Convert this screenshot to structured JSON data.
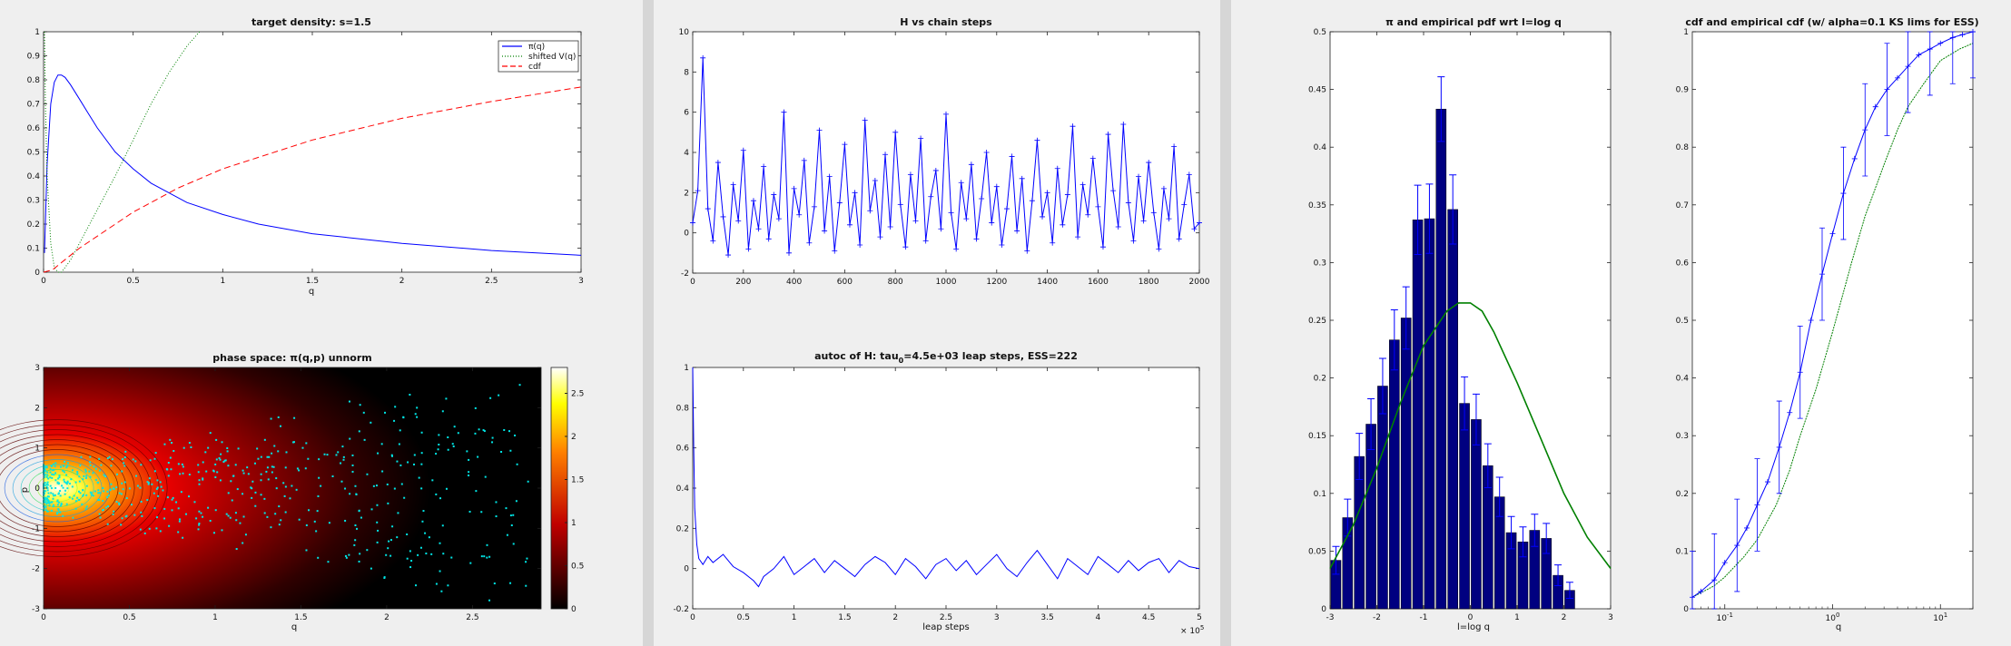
{
  "chart_data": [
    {
      "type": "line",
      "title": "target density: s=1.5",
      "xlabel": "q",
      "ylabel": "",
      "xlim": [
        0,
        3
      ],
      "ylim": [
        0,
        1
      ],
      "xticks": [
        "0",
        "0.5",
        "1",
        "1.5",
        "2",
        "2.5",
        "3"
      ],
      "yticks": [
        "0",
        "0.1",
        "0.2",
        "0.3",
        "0.4",
        "0.5",
        "0.6",
        "0.7",
        "0.8",
        "0.9",
        "1"
      ],
      "legend": [
        "π(q)",
        "shifted V(q)",
        "cdf"
      ],
      "legend_position": "top-right",
      "series": [
        {
          "name": "π(q)",
          "color": "#0000ff",
          "x": [
            0.005,
            0.02,
            0.04,
            0.06,
            0.08,
            0.1,
            0.12,
            0.15,
            0.2,
            0.25,
            0.3,
            0.4,
            0.5,
            0.6,
            0.8,
            1.0,
            1.2,
            1.5,
            2.0,
            2.5,
            3.0
          ],
          "y": [
            0.08,
            0.45,
            0.7,
            0.79,
            0.82,
            0.82,
            0.81,
            0.78,
            0.72,
            0.66,
            0.6,
            0.5,
            0.43,
            0.37,
            0.29,
            0.24,
            0.2,
            0.16,
            0.12,
            0.09,
            0.07
          ]
        },
        {
          "name": "shifted V(q)",
          "color": "#008000",
          "x": [
            0.005,
            0.01,
            0.02,
            0.04,
            0.06,
            0.08,
            0.1,
            0.12,
            0.15,
            0.2,
            0.3,
            0.4,
            0.5,
            0.6,
            0.7,
            0.8,
            0.87
          ],
          "y": [
            1.0,
            0.7,
            0.4,
            0.12,
            0.02,
            0.0,
            0.0,
            0.02,
            0.05,
            0.12,
            0.26,
            0.4,
            0.55,
            0.7,
            0.83,
            0.94,
            1.0
          ]
        },
        {
          "name": "cdf",
          "color": "#ff0000",
          "x": [
            0,
            0.05,
            0.1,
            0.2,
            0.3,
            0.5,
            0.75,
            1.0,
            1.5,
            2.0,
            2.5,
            3.0
          ],
          "y": [
            0.0,
            0.01,
            0.04,
            0.1,
            0.15,
            0.25,
            0.35,
            0.43,
            0.55,
            0.64,
            0.71,
            0.77
          ]
        }
      ]
    },
    {
      "type": "line",
      "title": "H vs chain steps",
      "xlabel": "",
      "ylabel": "",
      "xlim": [
        0,
        2000
      ],
      "ylim": [
        -2,
        10
      ],
      "xticks": [
        "0",
        "200",
        "400",
        "600",
        "800",
        "1000",
        "1200",
        "1400",
        "1600",
        "1800",
        "2000"
      ],
      "yticks": [
        "-2",
        "0",
        "2",
        "4",
        "6",
        "8",
        "10"
      ],
      "series": [
        {
          "name": "",
          "color": "#0000ff",
          "marker": "+",
          "x": [
            0,
            20,
            40,
            60,
            80,
            100,
            120,
            140,
            160,
            180,
            200,
            220,
            240,
            260,
            280,
            300,
            320,
            340,
            360,
            380,
            400,
            420,
            440,
            460,
            480,
            500,
            520,
            540,
            560,
            580,
            600,
            620,
            640,
            660,
            680,
            700,
            720,
            740,
            760,
            780,
            800,
            820,
            840,
            860,
            880,
            900,
            920,
            940,
            960,
            980,
            1000,
            1020,
            1040,
            1060,
            1080,
            1100,
            1120,
            1140,
            1160,
            1180,
            1200,
            1220,
            1240,
            1260,
            1280,
            1300,
            1320,
            1340,
            1360,
            1380,
            1400,
            1420,
            1440,
            1460,
            1480,
            1500,
            1520,
            1540,
            1560,
            1580,
            1600,
            1620,
            1640,
            1660,
            1680,
            1700,
            1720,
            1740,
            1760,
            1780,
            1800,
            1820,
            1840,
            1860,
            1880,
            1900,
            1920,
            1940,
            1960,
            1980,
            2000
          ],
          "y": [
            0.5,
            2.1,
            8.7,
            1.2,
            -0.4,
            3.5,
            0.8,
            -1.1,
            2.4,
            0.6,
            4.1,
            -0.8,
            1.6,
            0.2,
            3.3,
            -0.3,
            1.9,
            0.7,
            6.0,
            -1.0,
            2.2,
            0.9,
            3.6,
            -0.5,
            1.3,
            5.1,
            0.1,
            2.8,
            -0.9,
            1.5,
            4.4,
            0.4,
            2.0,
            -0.6,
            5.6,
            1.1,
            2.6,
            -0.2,
            3.9,
            0.3,
            5.0,
            1.4,
            -0.7,
            2.9,
            0.6,
            4.7,
            -0.4,
            1.8,
            3.1,
            0.2,
            5.9,
            1.0,
            -0.8,
            2.5,
            0.7,
            3.4,
            -0.3,
            1.7,
            4.0,
            0.5,
            2.3,
            -0.6,
            1.2,
            3.8,
            0.1,
            2.7,
            -0.9,
            1.6,
            4.6,
            0.8,
            2.0,
            -0.5,
            3.2,
            0.4,
            1.9,
            5.3,
            -0.2,
            2.4,
            0.9,
            3.7,
            1.3,
            -0.7,
            4.9,
            2.1,
            0.3,
            5.4,
            1.5,
            -0.4,
            2.8,
            0.6,
            3.5,
            1.0,
            -0.8,
            2.2,
            0.7,
            4.3,
            -0.3,
            1.4,
            2.9,
            0.2,
            0.5
          ]
        }
      ]
    },
    {
      "type": "heatmap",
      "title": "phase space: π(q,p) unnorm",
      "xlabel": "q",
      "ylabel": "p",
      "xlim": [
        0,
        2.9
      ],
      "ylim": [
        -3,
        3
      ],
      "xticks": [
        "0",
        "0.5",
        "1",
        "1.5",
        "2",
        "2.5"
      ],
      "yticks": [
        "-3",
        "-2",
        "-1",
        "0",
        "1",
        "2",
        "3"
      ],
      "colorbar_ticks": [
        "0",
        "0.5",
        "1",
        "1.5",
        "2",
        "2.5"
      ],
      "colorbar_range": [
        0,
        2.8
      ],
      "colormap": "hot",
      "samples_color": "#00e5e5"
    },
    {
      "type": "line",
      "title": "autoc of H: tau_0=4.5e+03 leap steps, ESS=222",
      "title_main": "autoc of H: tau",
      "title_sub": "0",
      "title_rest": "=4.5e+03 leap steps, ESS=222",
      "xlabel": "leap steps",
      "ylabel": "",
      "xlim": [
        0,
        5
      ],
      "ylim": [
        -0.2,
        1
      ],
      "x_multiplier": "× 10",
      "x_multiplier_exp": "5",
      "xticks": [
        "0",
        "0.5",
        "1",
        "1.5",
        "2",
        "2.5",
        "3",
        "3.5",
        "4",
        "4.5",
        "5"
      ],
      "yticks": [
        "-0.2",
        "0",
        "0.2",
        "0.4",
        "0.6",
        "0.8",
        "1"
      ],
      "series": [
        {
          "name": "",
          "color": "#0000ff",
          "x": [
            0,
            0.01,
            0.02,
            0.04,
            0.06,
            0.1,
            0.15,
            0.2,
            0.3,
            0.4,
            0.5,
            0.6,
            0.65,
            0.7,
            0.8,
            0.9,
            1.0,
            1.1,
            1.2,
            1.3,
            1.4,
            1.5,
            1.6,
            1.7,
            1.8,
            1.9,
            2.0,
            2.1,
            2.2,
            2.3,
            2.4,
            2.5,
            2.6,
            2.7,
            2.8,
            2.9,
            3.0,
            3.1,
            3.2,
            3.3,
            3.4,
            3.5,
            3.6,
            3.7,
            3.8,
            3.9,
            4.0,
            4.1,
            4.2,
            4.3,
            4.4,
            4.5,
            4.6,
            4.7,
            4.8,
            4.9,
            5.0
          ],
          "y": [
            1.0,
            0.6,
            0.3,
            0.12,
            0.05,
            0.02,
            0.06,
            0.03,
            0.07,
            0.01,
            -0.02,
            -0.06,
            -0.09,
            -0.04,
            0.0,
            0.06,
            -0.03,
            0.01,
            0.05,
            -0.02,
            0.04,
            0.0,
            -0.04,
            0.02,
            0.06,
            0.03,
            -0.03,
            0.05,
            0.01,
            -0.05,
            0.02,
            0.05,
            -0.01,
            0.04,
            -0.03,
            0.02,
            0.07,
            0.0,
            -0.04,
            0.03,
            0.09,
            0.02,
            -0.05,
            0.05,
            0.01,
            -0.03,
            0.06,
            0.02,
            -0.02,
            0.04,
            -0.01,
            0.03,
            0.05,
            -0.02,
            0.04,
            0.01,
            0.0
          ]
        }
      ]
    },
    {
      "type": "bar",
      "title": "π and empirical pdf wrt l=log q",
      "xlabel": "l=log q",
      "ylabel": "",
      "xlim": [
        -3,
        3
      ],
      "ylim": [
        0,
        0.5
      ],
      "xticks": [
        "-3",
        "-2",
        "-1",
        "0",
        "1",
        "2",
        "3"
      ],
      "yticks": [
        "0",
        "0.05",
        "0.1",
        "0.15",
        "0.2",
        "0.25",
        "0.3",
        "0.35",
        "0.4",
        "0.45",
        "0.5"
      ],
      "bar_color": "#000080",
      "errorbar_color": "#0000ff",
      "bar_centers": [
        -2.875,
        -2.625,
        -2.375,
        -2.125,
        -1.875,
        -1.625,
        -1.375,
        -1.125,
        -0.875,
        -0.625,
        -0.375,
        -0.125,
        0.125,
        0.375,
        0.625,
        0.875,
        1.125,
        1.375,
        1.625,
        1.875,
        2.125,
        2.375,
        2.625,
        2.875
      ],
      "values": [
        0.042,
        0.079,
        0.132,
        0.16,
        0.193,
        0.233,
        0.252,
        0.337,
        0.338,
        0.433,
        0.346,
        0.178,
        0.164,
        0.124,
        0.097,
        0.066,
        0.058,
        0.068,
        0.061,
        0.029,
        0.016,
        0.0,
        0.0,
        0.0
      ],
      "errors": [
        0.012,
        0.016,
        0.02,
        0.022,
        0.024,
        0.026,
        0.027,
        0.03,
        0.03,
        0.028,
        0.03,
        0.023,
        0.022,
        0.019,
        0.017,
        0.014,
        0.013,
        0.014,
        0.013,
        0.009,
        0.007,
        0.0,
        0.0,
        0.0
      ],
      "curve": {
        "name": "π",
        "color": "#008000",
        "x": [
          -3,
          -2.5,
          -2,
          -1.5,
          -1,
          -0.5,
          -0.25,
          0,
          0.25,
          0.5,
          1,
          1.5,
          2,
          2.5,
          3
        ],
        "y": [
          0.035,
          0.073,
          0.122,
          0.178,
          0.228,
          0.258,
          0.265,
          0.265,
          0.258,
          0.24,
          0.196,
          0.148,
          0.1,
          0.062,
          0.035
        ]
      }
    },
    {
      "type": "line",
      "title": "cdf and empirical cdf (w/ alpha=0.1 KS lims for ESS)",
      "xlabel": "q",
      "ylabel": "",
      "xscale": "log",
      "xlim": [
        0.05,
        20
      ],
      "ylim": [
        0,
        1
      ],
      "xticks": [
        "10",
        "10",
        "10"
      ],
      "xtick_exps": [
        "-1",
        "0",
        "1"
      ],
      "yticks": [
        "0",
        "0.1",
        "0.2",
        "0.3",
        "0.4",
        "0.5",
        "0.6",
        "0.7",
        "0.8",
        "0.9",
        "1"
      ],
      "series": [
        {
          "name": "empirical cdf",
          "color": "#0000ff",
          "marker": "+",
          "x": [
            0.05,
            0.06,
            0.08,
            0.1,
            0.13,
            0.16,
            0.2,
            0.25,
            0.32,
            0.4,
            0.5,
            0.63,
            0.8,
            1.0,
            1.26,
            1.6,
            2.0,
            2.5,
            3.2,
            4.0,
            5.0,
            6.3,
            8.0,
            10,
            13,
            16,
            20
          ],
          "y": [
            0.02,
            0.03,
            0.05,
            0.08,
            0.11,
            0.14,
            0.18,
            0.22,
            0.28,
            0.34,
            0.41,
            0.5,
            0.58,
            0.65,
            0.72,
            0.78,
            0.83,
            0.87,
            0.9,
            0.92,
            0.94,
            0.96,
            0.97,
            0.98,
            0.99,
            0.995,
            1.0
          ],
          "err": [
            0.08,
            0.08,
            0.08,
            0.08,
            0.08,
            0.08,
            0.08,
            0.08,
            0.08,
            0.08,
            0.08,
            0.08,
            0.08,
            0.08,
            0.08,
            0.08,
            0.08,
            0.08,
            0.08,
            0.08,
            0.08,
            0.08,
            0.08,
            0.08,
            0.08,
            0.08,
            0.08
          ]
        },
        {
          "name": "cdf",
          "color": "#008000",
          "x": [
            0.05,
            0.08,
            0.1,
            0.15,
            0.2,
            0.3,
            0.4,
            0.5,
            0.7,
            1.0,
            1.5,
            2.0,
            3.0,
            4.0,
            5.0,
            7.0,
            10,
            15,
            20
          ],
          "y": [
            0.02,
            0.04,
            0.055,
            0.09,
            0.12,
            0.18,
            0.24,
            0.3,
            0.38,
            0.48,
            0.6,
            0.68,
            0.77,
            0.83,
            0.87,
            0.91,
            0.95,
            0.97,
            0.98
          ]
        }
      ]
    }
  ]
}
